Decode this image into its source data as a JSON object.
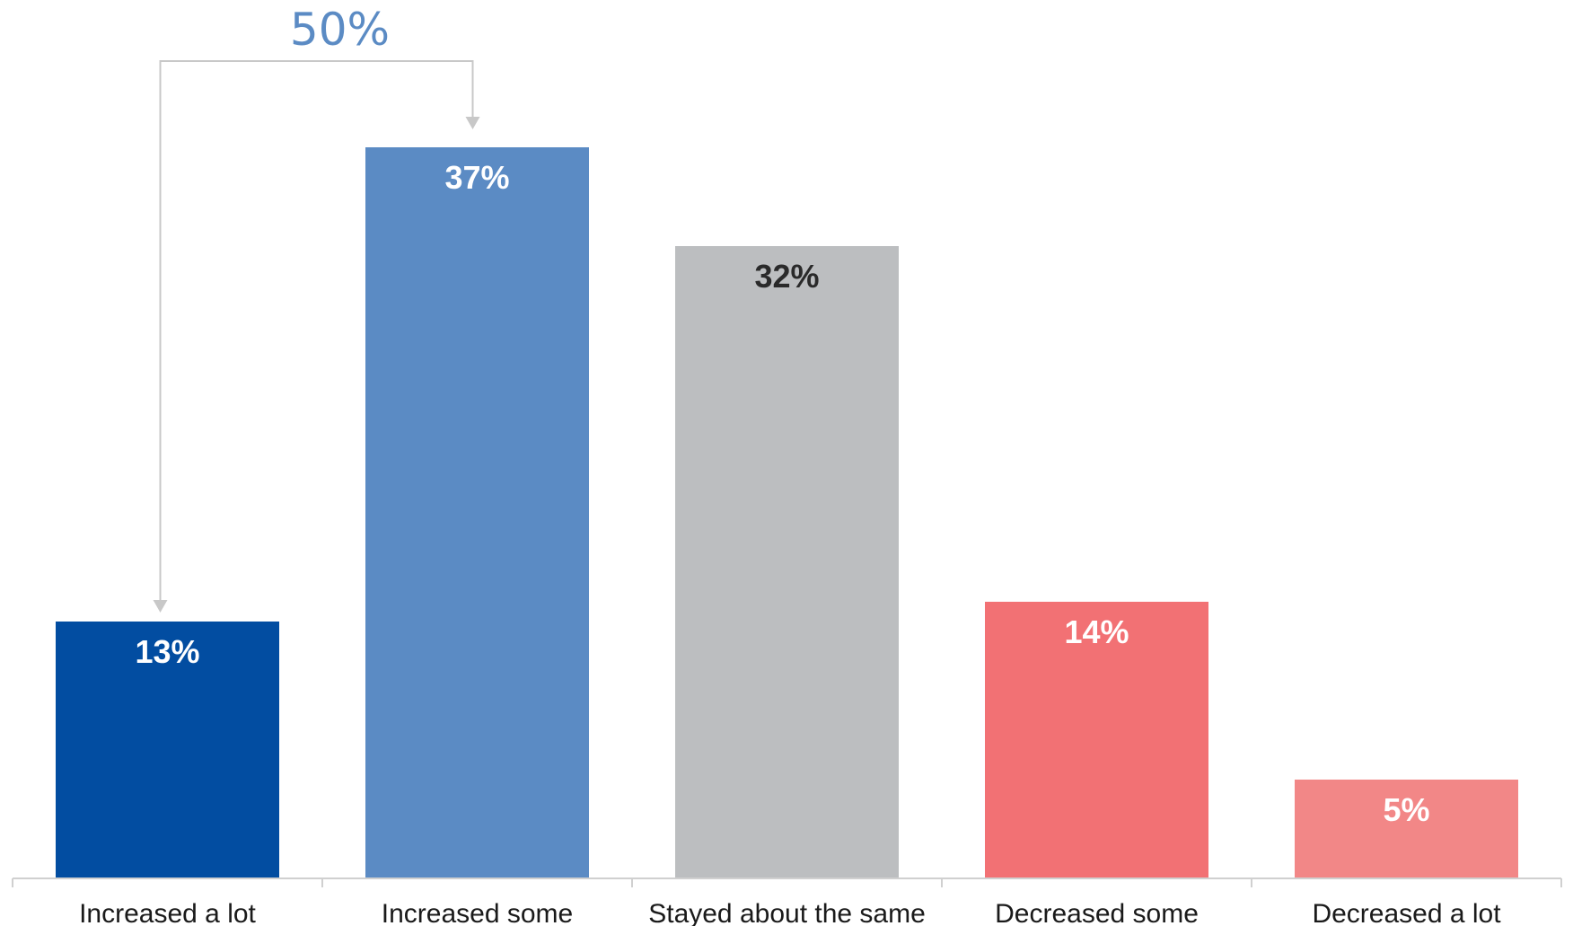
{
  "chart_data": {
    "type": "bar",
    "categories": [
      "Increased a lot",
      "Increased some",
      "Stayed about the same",
      "Decreased some",
      "Decreased a lot"
    ],
    "values": [
      13,
      37,
      32,
      14,
      5
    ],
    "value_labels": [
      "13%",
      "37%",
      "32%",
      "14%",
      "5%"
    ],
    "unit": "%",
    "colors": [
      "#024da1",
      "#5b8bc4",
      "#bcbec0",
      "#f27174",
      "#f28787"
    ],
    "label_colors": [
      "#ffffff",
      "#ffffff",
      "#2a2a2a",
      "#ffffff",
      "#ffffff"
    ],
    "ylim": [
      0,
      40
    ],
    "grid": false,
    "annotation": {
      "text": "50%",
      "spans_categories": [
        "Increased a lot",
        "Increased some"
      ],
      "color": "#5b8bc4"
    }
  }
}
